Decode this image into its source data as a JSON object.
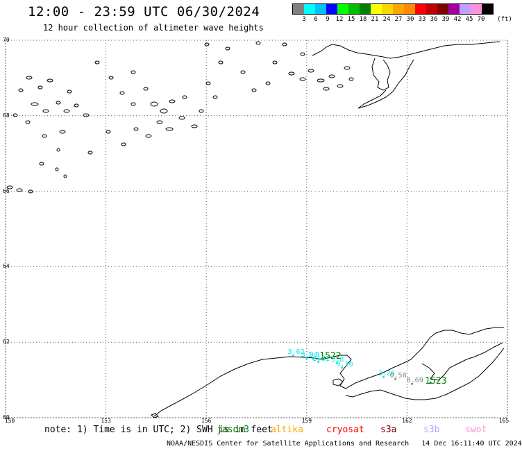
{
  "header": {
    "title": "12:00 - 23:59 UTC 06/30/2024",
    "subtitle": "12 hour collection of altimeter wave heights"
  },
  "legend": {
    "colors": [
      "#808080",
      "#00ffff",
      "#00bfff",
      "#0000ff",
      "#00ff00",
      "#00c000",
      "#008000",
      "#ffff00",
      "#ffd700",
      "#ffa500",
      "#ff8c00",
      "#ff0000",
      "#c00000",
      "#800000",
      "#a000a0",
      "#c0a0ff",
      "#ff90e0",
      "#000000"
    ],
    "ticks": [
      "3",
      "6",
      "9",
      "12",
      "15",
      "18",
      "21",
      "24",
      "27",
      "30",
      "33",
      "36",
      "39",
      "42",
      "45",
      "70"
    ],
    "unit": "(ft)"
  },
  "axes": {
    "lat_labels": [
      "70",
      "68",
      "66",
      "64",
      "62",
      "60"
    ],
    "lon_labels": [
      "150",
      "153",
      "156",
      "159",
      "162",
      "165"
    ]
  },
  "observations": [
    {
      "text": "3.62",
      "color": "#00e5ee",
      "lon": 158.6,
      "lat": 61.72
    },
    {
      "text": "3.94",
      "color": "#00e5ee",
      "lon": 159.0,
      "lat": 61.65
    },
    {
      "text": "1.1",
      "color": "#00e5ee",
      "lon": 159.2,
      "lat": 61.63
    },
    {
      "text": "1522",
      "color": "#008000",
      "lon": 159.55,
      "lat": 61.66
    },
    {
      "text": "3.61",
      "color": "#00e5ee",
      "lon": 159.35,
      "lat": 61.55
    },
    {
      "text": "3.8",
      "color": "#00e5ee",
      "lon": 159.9,
      "lat": 61.52
    },
    {
      "text": "3.10",
      "color": "#00e5ee",
      "lon": 160.05,
      "lat": 61.4
    },
    {
      "text": "3.26",
      "color": "#00e5ee",
      "lon": 161.3,
      "lat": 61.15
    },
    {
      "text": "0.58",
      "color": "#808080",
      "lon": 161.65,
      "lat": 61.1
    },
    {
      "text": "0.69",
      "color": "#808080",
      "lon": 162.15,
      "lat": 60.97
    },
    {
      "text": "1523",
      "color": "#008000",
      "lon": 162.7,
      "lat": 61.0
    }
  ],
  "footer": {
    "note": "note: 1) Time is in UTC; 2) SWH is in feet",
    "satellites": [
      {
        "name": "jason3",
        "color": "#008000"
      },
      {
        "name": "altika",
        "color": "#ffa500"
      },
      {
        "name": "cryosat",
        "color": "#ff0000"
      },
      {
        "name": "s3a",
        "color": "#800000"
      },
      {
        "name": "s3b",
        "color": "#c0a0ff"
      },
      {
        "name": "swot",
        "color": "#ff90e0"
      }
    ],
    "credit": "NOAA/NESDIS Center for Satellite Applications and Research   14 Dec 16:11:40 UTC 2024"
  }
}
